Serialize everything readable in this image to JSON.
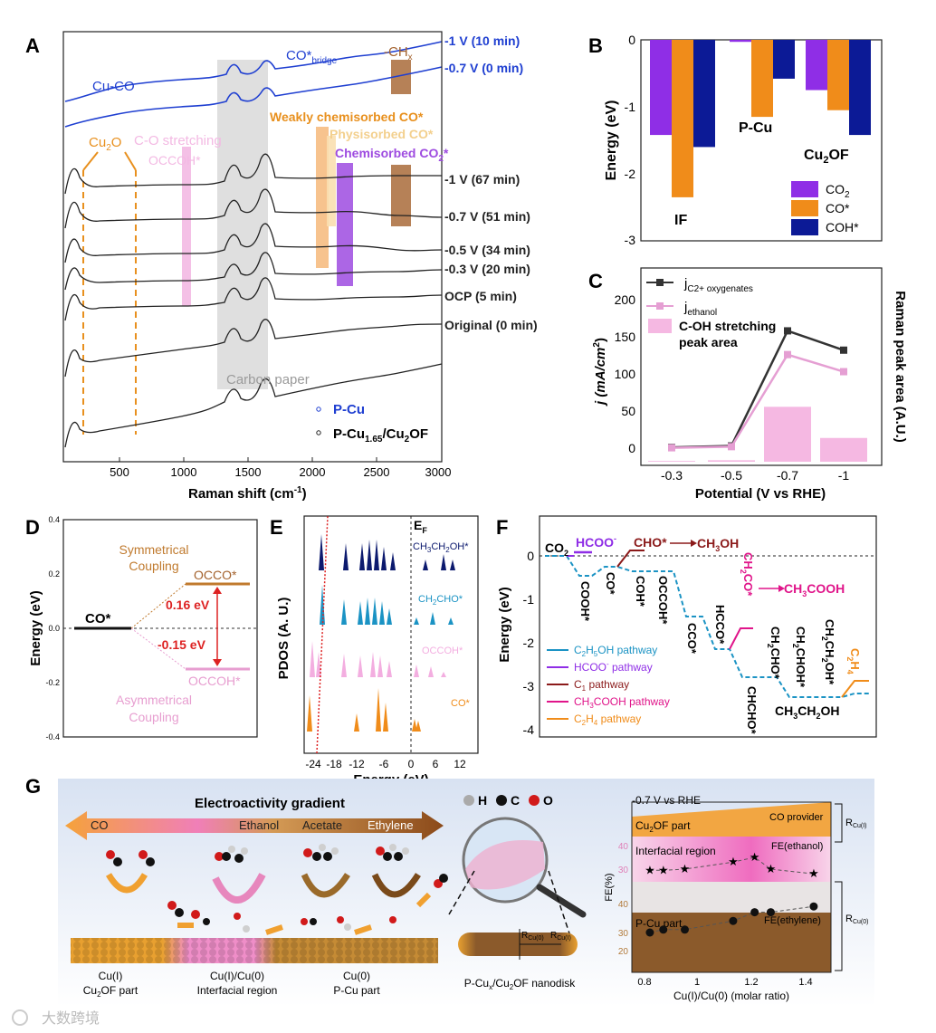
{
  "panel_letters": [
    "A",
    "B",
    "C",
    "D",
    "E",
    "F",
    "G"
  ],
  "panelA": {
    "xlabel": "Raman shift (cm",
    "xlabel_sup": "-1",
    "xlabel_end": ")",
    "xticks": [
      "500",
      "1000",
      "1500",
      "2000",
      "2500",
      "3000"
    ],
    "traces_blue": [
      "-1 V (10 min)",
      "-0.7 V (0 min)"
    ],
    "traces_black": [
      "-1 V (67 min)",
      "-0.7 V (51 min)",
      "-0.5 V (34 min)",
      "-0.3 V (20 min)",
      "OCP (5 min)",
      "Original (0 min)"
    ],
    "annotations": {
      "cuco": "Cu-CO",
      "cobridge": "CO*",
      "cobridge_sub": "bridge",
      "chx": "-CH",
      "chx_sub": "x",
      "weak": "Weakly chemisorbed CO*",
      "physi": "Physisorbed CO*",
      "chemi": "Chemisorbed CO",
      "chemi_sub": "2",
      "chemi_end": "*",
      "cu2o": "Cu",
      "cu2o_sub": "2",
      "cu2o_end": "O",
      "co_stretch": "C-O stretching",
      "occoh": "OCCOH*",
      "carbon": "Carbon paper"
    },
    "legend": {
      "pcu": "P-Cu",
      "pcu2": "P-Cu",
      "pcu2_sub": "1.65",
      "pcu2_end": "/Cu",
      "pcu2_sub2": "2",
      "pcu2_end2": "OF"
    },
    "colors": {
      "blue": "#1f3fd1",
      "orange": "#e8901e",
      "pink": "#f3b9e3",
      "purple": "#9e4be0",
      "brown": "#a4622d",
      "gray": "#cfcfcf"
    }
  },
  "chart_data": [
    {
      "type": "bar",
      "panel": "B",
      "ylabel": "Energy (eV)",
      "yticks": [
        "0",
        "-1",
        "-2",
        "-3"
      ],
      "ylim": [
        -3,
        0
      ],
      "categories": [
        "IF",
        "P-Cu",
        "Cu2OF"
      ],
      "category_labels": {
        "if": "IF",
        "pcu": "P-Cu",
        "cu2of": "Cu",
        "cu2of_sub": "2",
        "cu2of_end": "OF"
      },
      "series": [
        {
          "name": "CO2",
          "values": [
            -1.42,
            -0.03,
            -0.75
          ],
          "color": "#8f2ee6"
        },
        {
          "name": "CO*",
          "values": [
            -2.35,
            -1.15,
            -1.05
          ],
          "color": "#f08c1a"
        },
        {
          "name": "COH*",
          "values": [
            -1.6,
            -0.58,
            -1.42
          ],
          "color": "#0c1a96"
        }
      ],
      "legend_labels": {
        "co2": "CO",
        "co2_sub": "2",
        "co": "CO*",
        "coh": "COH*"
      }
    },
    {
      "type": "line",
      "panel": "C",
      "categories": [
        "-0.3",
        "-0.5",
        "-0.7",
        "-1"
      ],
      "xlabel": "Potential (V vs RHE)",
      "ylabel": "j (mA/cm",
      "ylabel_sup": "2",
      "ylabel_end": ")",
      "y2label": "Raman peak area (A.U.)",
      "yticks": [
        "0",
        "50",
        "100",
        "150",
        "200"
      ],
      "ylim": [
        0,
        200
      ],
      "series": [
        {
          "name": "j C2+ oxygenates",
          "values": [
            1,
            3,
            158,
            132
          ],
          "color": "#333333"
        },
        {
          "name": "j ethanol",
          "values": [
            0.5,
            2,
            126,
            103
          ],
          "color": "#e59fd3"
        }
      ],
      "bars": {
        "name": "C-OH stretching peak area",
        "values": [
          0.5,
          1,
          37,
          16
        ],
        "color": "#f5b8e2"
      },
      "legend_labels": {
        "j1": "j",
        "j1_sub": "C2+ oxygenates",
        "j2": "j",
        "j2_sub": "ethanol",
        "bar1": "C-OH stretching",
        "bar2": "peak area"
      }
    }
  ],
  "panelD": {
    "ylabel": "Energy (eV)",
    "yticks": [
      "0.4",
      "0.2",
      "0.0",
      "-0.2",
      "-0.4"
    ],
    "co": "CO*",
    "occo": "OCCO*",
    "occoh": "OCCOH*",
    "sym1": "Symmetrical",
    "sym2": "Coupling",
    "asym1": "Asymmetrical",
    "asym2": "Coupling",
    "e1": "0.16 eV",
    "e2": "-0.15 eV",
    "values": {
      "co": 0.0,
      "occo": 0.16,
      "occoh": -0.15
    }
  },
  "panelE": {
    "ylabel": "PDOS (A. U.)",
    "xlabel": "Energy (eV)",
    "xticks": [
      "-24",
      "-18",
      "-12",
      "-6",
      "0",
      "6",
      "12"
    ],
    "ef": "E",
    "ef_sub": "F",
    "labels": [
      "CH3CH2OH*",
      "CH2CHO*",
      "OCCOH*",
      "CO*"
    ],
    "label_parts": {
      "l1a": "CH",
      "l1s1": "3",
      "l1b": "CH",
      "l1s2": "2",
      "l1c": "OH*",
      "l2a": "CH",
      "l2s1": "2",
      "l2b": "CHO*",
      "l3": "OCCOH*",
      "l4": "CO*"
    },
    "colors": [
      "#0c1a6e",
      "#1b93c4",
      "#f3aee0",
      "#f08c1a"
    ]
  },
  "panelF": {
    "ylabel": "Energy (eV)",
    "yticks": [
      "0",
      "-1",
      "-2",
      "-3",
      "-4"
    ],
    "states": {
      "co2": "CO",
      "co2_sub": "2",
      "hcoo": "HCOO",
      "hcoo_sup": "-",
      "cho": "CHO*",
      "ch3oh": "CH",
      "ch3oh_sub": "3",
      "ch3oh_end": "OH",
      "cooh": "COOH*",
      "cos": "CO*",
      "coh": "COH*",
      "occoh": "OCCOH*",
      "cco": "CCO*",
      "hcco": "HCCO*",
      "ch2co": "CH",
      "ch2co_sub": "2",
      "ch2co_end": "CO*",
      "ch3cooh": "CH",
      "ch3cooh_sub": "3",
      "ch3cooh_end": "COOH",
      "chcho": "CHCHO*",
      "ch2cho": "CH",
      "ch2cho_sub": "2",
      "ch2cho_end": "CHO*",
      "ch2choh": "CH",
      "ch2choh_sub": "2",
      "ch2choh_end": "CHOH*",
      "ch2ch2oh": "CH",
      "ch2ch2oh_sub": "2",
      "ch2ch2oh_mid": "CH",
      "ch2ch2oh_sub2": "2",
      "ch2ch2oh_end": "OH*",
      "c2h4": "C",
      "c2h4_sub": "2",
      "c2h4_mid": "H",
      "c2h4_sub2": "4",
      "ch3ch2oh": "CH",
      "ch3ch2oh_sub": "3",
      "ch3ch2oh_mid": "CH",
      "ch3ch2oh_sub2": "2",
      "ch3ch2oh_end": "OH"
    },
    "legend": [
      {
        "pre": "C",
        "sub": "2",
        "mid": "H",
        "sub2": "5",
        "end": "OH pathway",
        "color": "#1b93c4"
      },
      {
        "pre": "HCOO",
        "sup": "-",
        "end": " pathway",
        "color": "#8f2ee6"
      },
      {
        "pre": "C",
        "sub": "1",
        "end": " pathway",
        "color": "#8b1a1a"
      },
      {
        "pre": "CH",
        "sub": "3",
        "end": "COOH pathway",
        "color": "#e0158a"
      },
      {
        "pre": "C",
        "sub": "2",
        "mid": "H",
        "sub2": "4",
        "end": " pathway",
        "color": "#f08c1a"
      }
    ],
    "path_values": [
      0,
      -0.45,
      -0.25,
      -0.3,
      -0.3,
      -1.4,
      -2.15,
      -2.8,
      -2.8,
      -3.25,
      -3.25,
      -3.15
    ]
  },
  "panelG": {
    "gradient": "Electroactivity gradient",
    "arrow_labels": [
      "CO",
      "Ethanol",
      "Acetate",
      "Ethylene"
    ],
    "atoms": [
      "H",
      "C",
      "O"
    ],
    "bottom": {
      "cu1": "Cu(I)",
      "cu1b": "Cu",
      "cu1b_sub": "2",
      "cu1b_end": "OF part",
      "inter": "Cu(I)/Cu(0)",
      "inter2": "Interfacial region",
      "cu0": "Cu(0)",
      "cu0b": "P-Cu part",
      "disk": "P-Cu",
      "disk_sub": "x",
      "disk_mid": "/Cu",
      "disk_sub2": "2",
      "disk_end": "OF nanodisk"
    },
    "disk_labels": {
      "rcu0": "R",
      "rcu0_sub": "Cu(0)",
      "rcu1": "R",
      "rcu1_sub": "Cu(I)"
    },
    "plot": {
      "title": "-0.7 V vs RHE",
      "cu2of_part": "Cu",
      "cu2of_sub": "2",
      "cu2of_end": "OF part",
      "co_provider": "CO provider",
      "interfacial": "Interfacial region",
      "fe_ethanol": "FE(ethanol)",
      "pcu_part": "P-Cu part",
      "fe_ethylene": "FE(ethylene)",
      "ylabel": "FE(%)",
      "xlabel": "Cu(I)/Cu(0) (molar ratio)",
      "xticks": [
        "0.8",
        "1",
        "1.2",
        "1.4"
      ],
      "yticks_top": [
        "40",
        "30"
      ],
      "yticks_bot": [
        "40",
        "30",
        "20"
      ],
      "rcu1": "R",
      "rcu1_sub": "Cu(I)",
      "rcu0": "R",
      "rcu0_sub": "Cu(0)",
      "ethanol_x": [
        0.82,
        0.87,
        0.95,
        1.13,
        1.21,
        1.27,
        1.43
      ],
      "ethanol_y": [
        29.5,
        29.5,
        30,
        33,
        35,
        30,
        28
      ],
      "ethylene_x": [
        0.82,
        0.87,
        0.95,
        1.13,
        1.21,
        1.27,
        1.43
      ],
      "ethylene_y": [
        30,
        31,
        31,
        34,
        37,
        37,
        39
      ]
    }
  },
  "watermark": "大数跨境"
}
